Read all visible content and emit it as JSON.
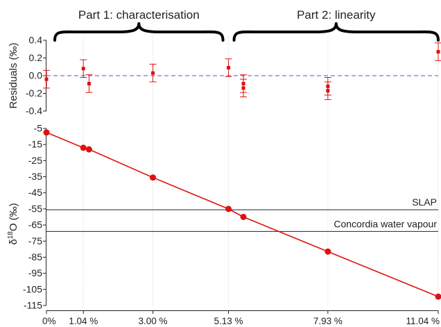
{
  "chart_data": [
    {
      "type": "scatter",
      "panel": "residuals",
      "ylabel": "Residuals (‰)",
      "ylim": [
        -0.4,
        0.4
      ],
      "yticks": [
        "0.4",
        "0.2",
        "0.0",
        "-0.2",
        "-0.4"
      ],
      "zero_line": {
        "y": 0,
        "color": "#3b5bdb",
        "style": "dashed"
      },
      "grid": "vertical dotted at x ticks",
      "color": "#e01010",
      "points": [
        {
          "x": 0.0,
          "y": -0.04,
          "err": 0.1
        },
        {
          "x": 1.04,
          "y": 0.08,
          "err": 0.1
        },
        {
          "x": 1.2,
          "y": -0.09,
          "err": 0.1
        },
        {
          "x": 3.0,
          "y": 0.03,
          "err": 0.1
        },
        {
          "x": 5.13,
          "y": 0.09,
          "err": 0.1
        },
        {
          "x": 5.55,
          "y": -0.09,
          "err": 0.1
        },
        {
          "x": 5.55,
          "y": -0.14,
          "err": 0.1
        },
        {
          "x": 7.93,
          "y": -0.12,
          "err": 0.1
        },
        {
          "x": 7.93,
          "y": -0.17,
          "err": 0.1
        },
        {
          "x": 11.04,
          "y": 0.27,
          "err": 0.1
        }
      ]
    },
    {
      "type": "line",
      "panel": "delta",
      "ylabel_main": "δ",
      "ylabel_sup": "18",
      "ylabel_rest": "O (‰)",
      "ylim": [
        -115,
        -5
      ],
      "yticks": [
        "-5",
        "-15",
        "-25",
        "-35",
        "-45",
        "-55",
        "-65",
        "-75",
        "-85",
        "-95",
        "-105",
        "-115"
      ],
      "color": "#e01010",
      "x": [
        0.0,
        1.04,
        1.2,
        3.0,
        5.13,
        5.55,
        7.93,
        11.04
      ],
      "y": [
        -7.5,
        -17.0,
        -18.0,
        -35.5,
        -55.0,
        -60.0,
        -81.5,
        -109.5
      ],
      "reference_lines": [
        {
          "label": "SLAP",
          "y": -55.5
        },
        {
          "label": "Concordia  water vapour",
          "y": -69.0
        }
      ]
    }
  ],
  "x_axis": {
    "range": [
      0,
      11.04
    ],
    "ticks": [
      {
        "value": 0.0,
        "label": "0%"
      },
      {
        "value": 1.04,
        "label": "1.04 %"
      },
      {
        "value": 3.0,
        "label": "3.00 %"
      },
      {
        "value": 5.13,
        "label": "5.13 %"
      },
      {
        "value": 7.93,
        "label": "7.93 %"
      },
      {
        "value": 11.04,
        "label": "11.04 %"
      }
    ]
  },
  "sections": [
    {
      "label": "Part 1: characterisation",
      "from": 0.0,
      "to": 5.13
    },
    {
      "label": "Part 2: linearity",
      "from": 5.13,
      "to": 11.04
    }
  ]
}
